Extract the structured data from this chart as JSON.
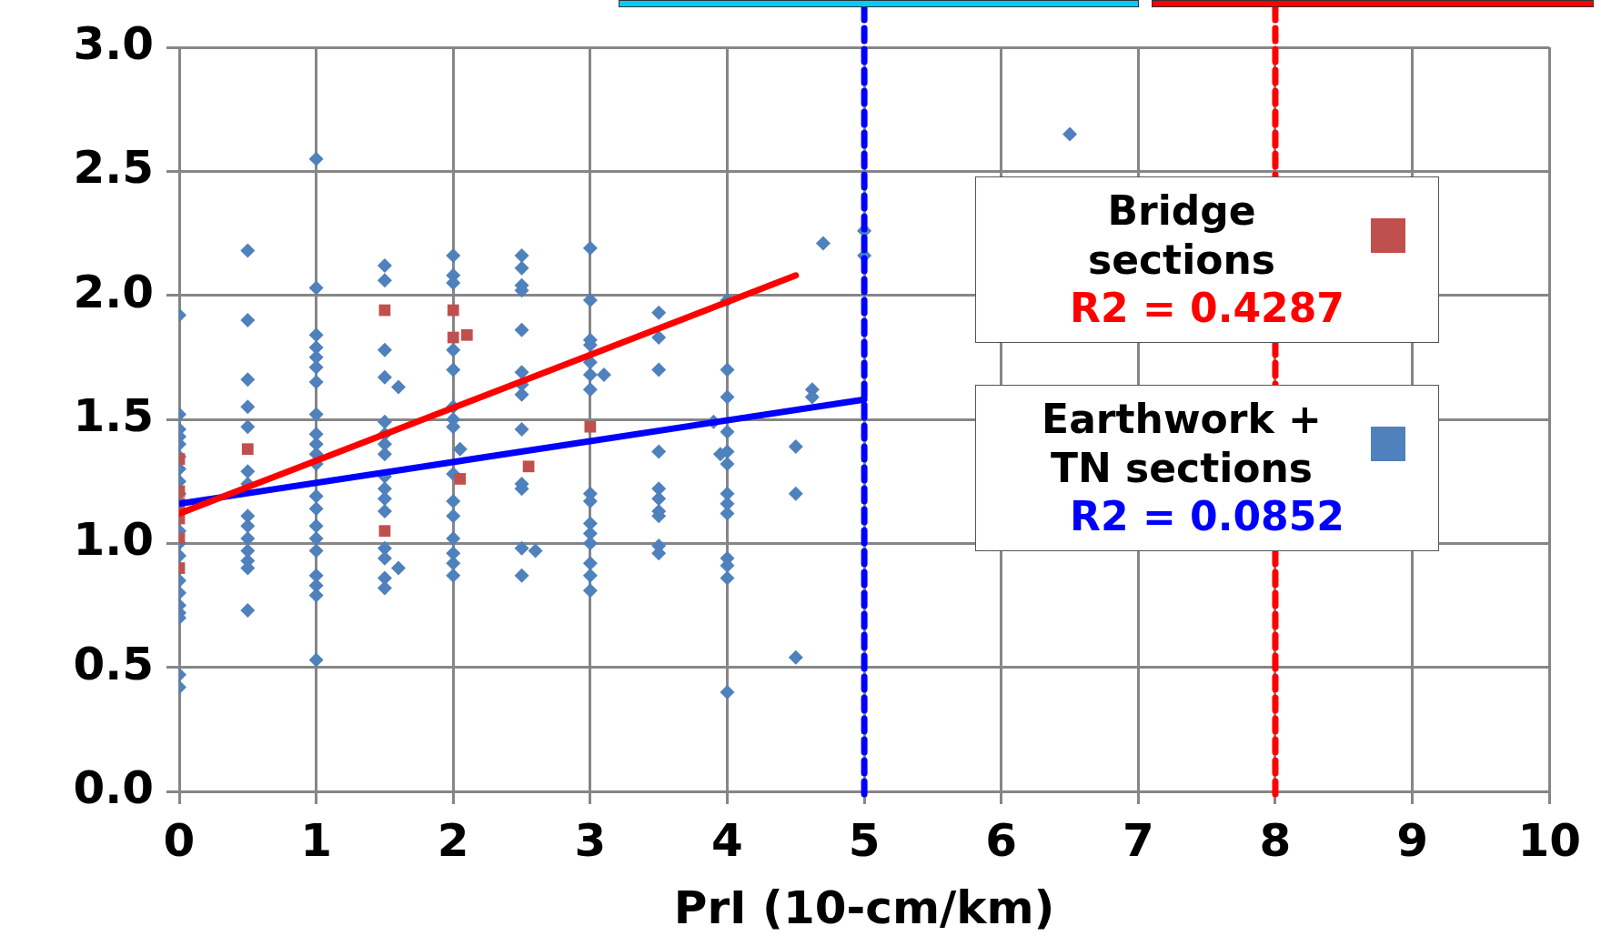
{
  "chart_data": {
    "type": "scatter",
    "xlabel": "PrI (10-cm/km)",
    "xlim": [
      0,
      10
    ],
    "xticks": [
      0,
      1,
      2,
      3,
      4,
      5,
      6,
      7,
      8,
      9,
      10
    ],
    "ylim": [
      0,
      3
    ],
    "yticks": [
      {
        "value": 0,
        "label": "0.0"
      },
      0.5,
      {
        "value": 1,
        "label": "1.0"
      },
      1.5,
      {
        "value": 2,
        "label": "2.0"
      },
      2.5,
      {
        "value": 3,
        "label": "3.0"
      }
    ],
    "grid": true,
    "legend": "top right",
    "series": [
      {
        "name": "Bridge sections",
        "type": "scatter",
        "marker": "square",
        "color": "#c0504d",
        "x": [
          0,
          0,
          0,
          0,
          0,
          0,
          0.5,
          1.5,
          1.5,
          2,
          2,
          2.1,
          2.05,
          2.55,
          3
        ],
        "values": [
          1.34,
          1.21,
          1.16,
          1.1,
          1.02,
          0.9,
          1.38,
          1.94,
          1.05,
          1.94,
          1.83,
          1.84,
          1.26,
          1.31,
          1.47
        ]
      },
      {
        "name": "Earthwork + TN sections",
        "type": "scatter",
        "marker": "diamond",
        "color": "#4f81bd",
        "x": [
          0,
          0,
          0,
          0,
          0,
          0,
          0,
          0,
          0,
          0,
          0,
          0,
          0,
          0,
          0,
          0,
          0,
          0,
          0,
          0.5,
          0.5,
          0.5,
          0.5,
          0.5,
          0.5,
          0.5,
          0.5,
          0.5,
          0.5,
          0.5,
          0.5,
          0.5,
          0.5,
          1,
          1,
          1,
          1,
          1,
          1,
          1,
          1,
          1,
          1,
          1,
          1,
          1,
          1,
          1,
          1,
          1,
          1,
          1,
          1,
          1,
          1.5,
          1.5,
          1.5,
          1.5,
          1.5,
          1.5,
          1.5,
          1.5,
          1.5,
          1.5,
          1.5,
          1.5,
          1.5,
          1.5,
          1.5,
          1.5,
          1.6,
          1.6,
          2,
          2,
          2,
          2,
          2,
          2,
          2,
          2,
          2,
          2,
          2,
          2,
          2,
          2,
          2,
          2.05,
          2.5,
          2.5,
          2.5,
          2.5,
          2.5,
          2.5,
          2.5,
          2.5,
          2.5,
          2.5,
          2.5,
          2.5,
          2.5,
          2.6,
          3,
          3,
          3,
          3,
          3,
          3,
          3,
          3,
          3,
          3,
          3,
          3,
          3,
          3,
          3,
          3.1,
          3.5,
          3.5,
          3.5,
          3.5,
          3.5,
          3.5,
          3.5,
          3.5,
          3.5,
          3.5,
          4,
          4,
          4,
          4,
          4,
          4,
          4,
          4,
          4,
          4,
          4,
          4,
          4,
          3.9,
          3.95,
          4.5,
          4.5,
          4.5,
          4.62,
          4.62,
          4.7,
          5,
          5,
          6.5
        ],
        "values": [
          1.92,
          1.52,
          1.46,
          1.43,
          1.4,
          1.35,
          1.3,
          1.25,
          1.2,
          1.05,
          1.0,
          0.95,
          0.85,
          0.8,
          0.75,
          0.72,
          0.7,
          0.47,
          0.42,
          2.18,
          1.9,
          1.66,
          1.55,
          1.47,
          1.29,
          1.24,
          1.11,
          1.07,
          1.02,
          0.97,
          0.93,
          0.9,
          0.73,
          2.55,
          2.03,
          1.84,
          1.79,
          1.75,
          1.71,
          1.65,
          1.52,
          1.44,
          1.4,
          1.36,
          1.32,
          1.19,
          1.14,
          1.07,
          1.02,
          0.97,
          0.87,
          0.83,
          0.79,
          0.53,
          2.12,
          2.06,
          1.78,
          1.67,
          1.49,
          1.44,
          1.4,
          1.36,
          1.27,
          1.22,
          1.18,
          1.13,
          0.98,
          0.94,
          0.86,
          0.82,
          1.63,
          0.9,
          2.16,
          2.08,
          2.05,
          1.78,
          1.7,
          1.55,
          1.5,
          1.47,
          1.28,
          1.17,
          1.11,
          1.02,
          0.96,
          0.92,
          0.87,
          1.38,
          2.16,
          2.11,
          2.04,
          2.02,
          1.86,
          1.69,
          1.64,
          1.6,
          1.46,
          1.24,
          1.22,
          0.98,
          0.87,
          0.97,
          2.19,
          1.98,
          1.82,
          1.8,
          1.73,
          1.68,
          1.62,
          1.2,
          1.17,
          1.08,
          1.04,
          1.0,
          0.92,
          0.87,
          0.81,
          1.68,
          1.93,
          1.83,
          1.7,
          1.37,
          1.22,
          1.18,
          1.13,
          1.11,
          0.99,
          0.96,
          1.98,
          1.7,
          1.59,
          1.45,
          1.37,
          1.32,
          1.2,
          1.16,
          1.12,
          0.94,
          0.91,
          0.86,
          0.4,
          1.49,
          1.36,
          1.39,
          1.2,
          0.54,
          1.62,
          1.59,
          2.21,
          2.26,
          2.16,
          2.65
        ]
      },
      {
        "type": "line",
        "color": "#ff0000",
        "x": [
          0,
          4.5
        ],
        "values": [
          1.12,
          2.08
        ]
      },
      {
        "type": "line",
        "color": "#0000ff",
        "x": [
          0,
          5
        ],
        "values": [
          1.16,
          1.58
        ]
      }
    ],
    "ref_lines": [
      {
        "axis": "x",
        "value": 5,
        "color": "#0000ff",
        "line_style": "dashed"
      },
      {
        "axis": "x",
        "value": 8,
        "color": "#ff0000",
        "line_style": "dashed"
      }
    ],
    "annotations": [
      "R2 = 0.4287",
      "R2 = 0.0852"
    ]
  }
}
